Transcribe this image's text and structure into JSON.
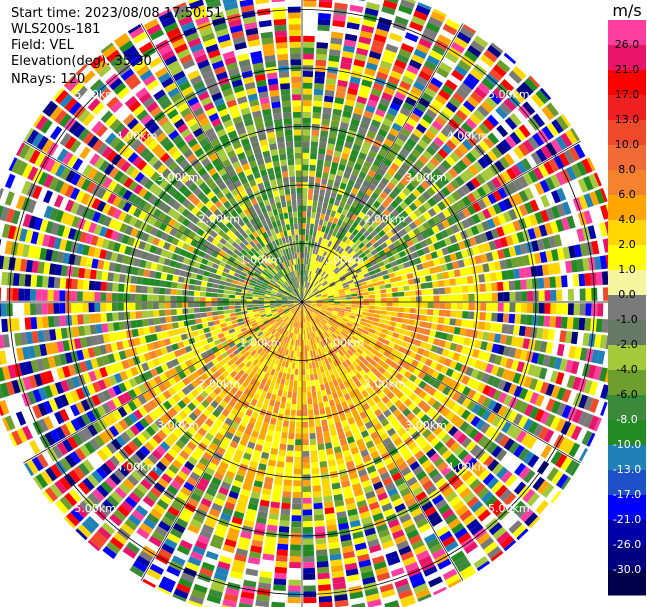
{
  "header": {
    "start_time": "Start time: 2023/08/08 17:50:51",
    "instrument": "WLS200s-181",
    "field": "Field: VEL",
    "elevation": "Elevation(deg): 35.30",
    "nrays": "NRays: 120"
  },
  "chart_data": {
    "type": "heatmap",
    "subtype": "radar-ppi",
    "field": "VEL",
    "units": "m/s",
    "n_rays": 120,
    "max_range_km": 5.5,
    "range_rings_km": [
      1,
      2,
      3,
      4,
      5
    ],
    "ring_labels": [
      "1.00km",
      "2.00km",
      "3.00km",
      "4.00km",
      "5.00km"
    ],
    "colorbar": {
      "label": "m/s",
      "ticks": [
        "26.0",
        "21.0",
        "17.0",
        "13.0",
        "10.0",
        "8.0",
        "6.0",
        "4.0",
        "2.0",
        "1.0",
        "0.0",
        "-1.0",
        "-2.0",
        "-4.0",
        "-6.0",
        "-8.0",
        "-10.0",
        "-13.0",
        "-17.0",
        "-21.0",
        "-26.0",
        "-30.0"
      ],
      "colors": [
        "#ff3fa0",
        "#e8156a",
        "#ff0000",
        "#f02020",
        "#f04a2a",
        "#f26a35",
        "#f5832e",
        "#ffa500",
        "#ffd700",
        "#ffff00",
        "#f5f5a0",
        "#7a7a7a",
        "#667a66",
        "#a4c93a",
        "#6e9e2e",
        "#3a8a3a",
        "#228b22",
        "#2080b8",
        "#1e50c8",
        "#0000ff",
        "#0000a8",
        "#000080",
        "#00004a"
      ]
    }
  }
}
